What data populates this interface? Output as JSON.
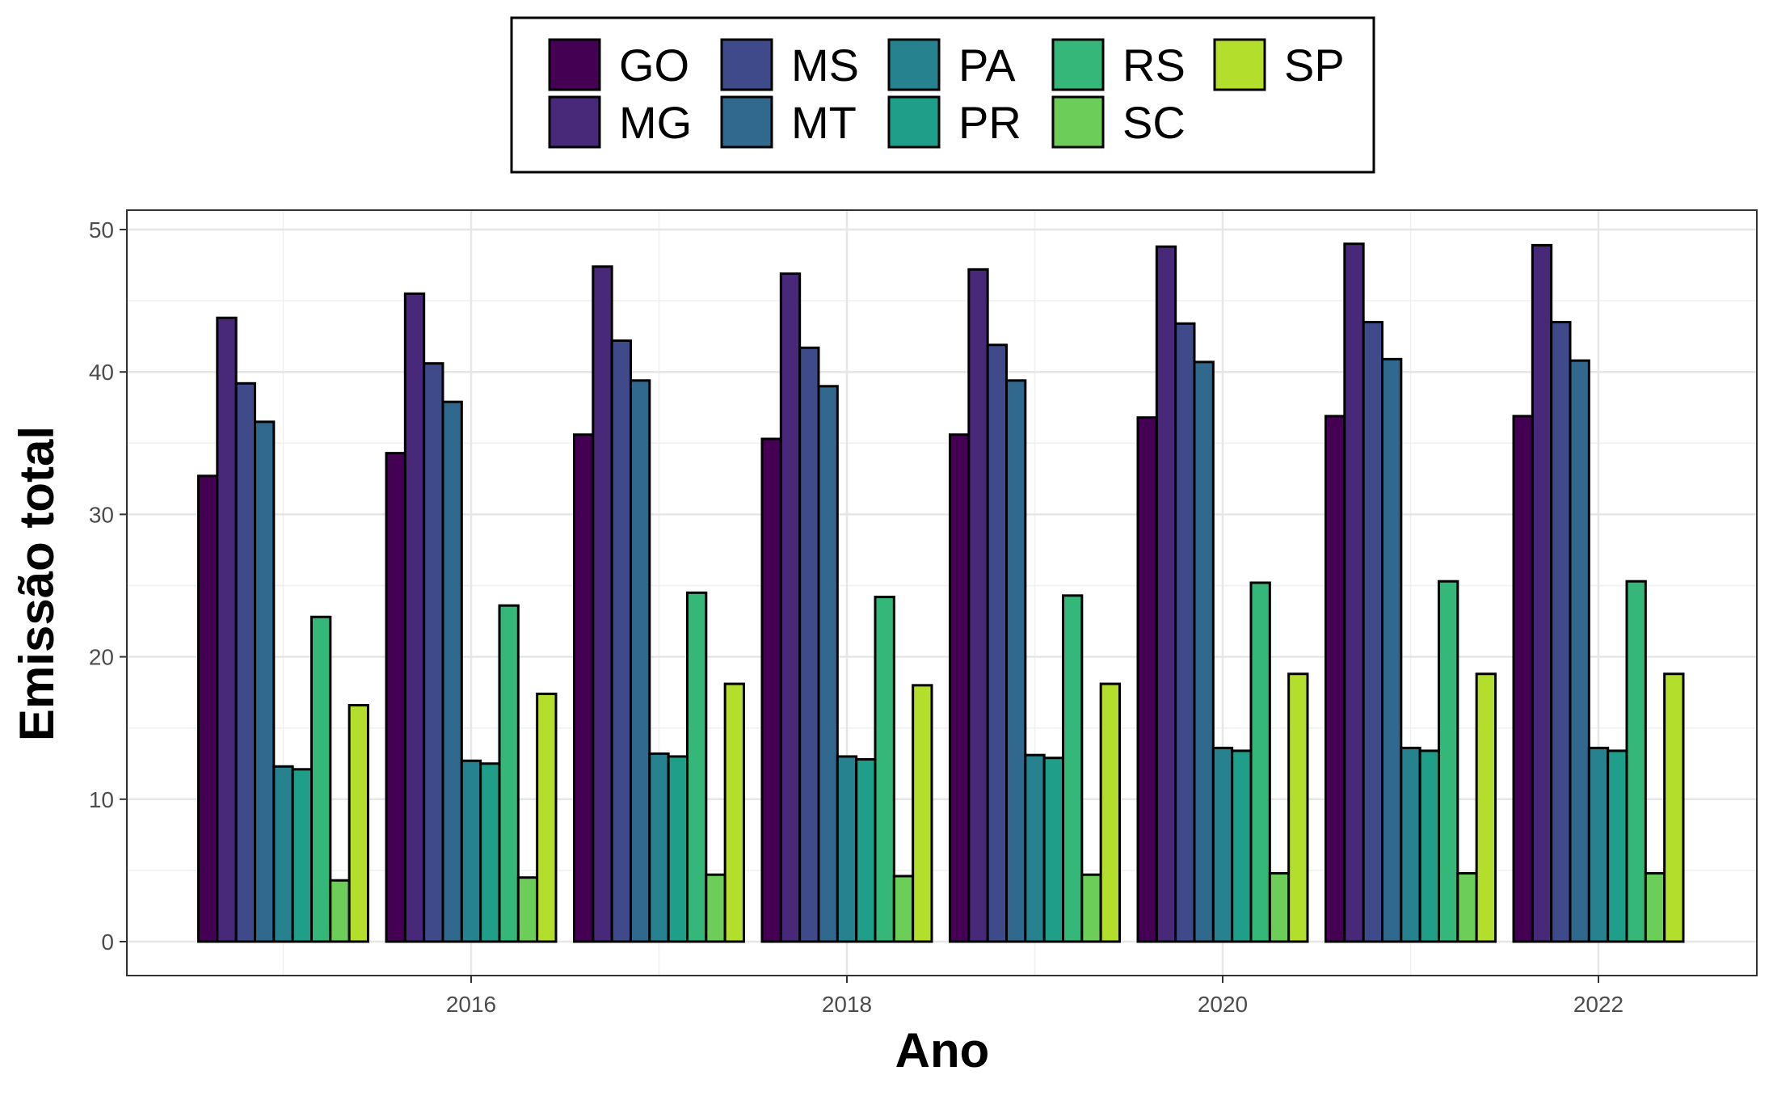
{
  "chart_data": {
    "type": "bar",
    "x": [
      2015,
      2016,
      2017,
      2018,
      2019,
      2020,
      2021,
      2022
    ],
    "xticks": [
      "2016",
      "2018",
      "2020",
      "2022"
    ],
    "xlabel": "Ano",
    "ylabel": "Emissão total",
    "ylim": [
      0,
      50
    ],
    "yticks": [
      "0",
      "10",
      "20",
      "30",
      "40",
      "50"
    ],
    "grid": true,
    "legend_position": "top",
    "series": [
      {
        "name": "GO",
        "color": "#440154",
        "values": [
          32.7,
          34.3,
          35.6,
          35.3,
          35.6,
          36.8,
          36.9,
          36.9
        ]
      },
      {
        "name": "MG",
        "color": "#482878",
        "values": [
          43.8,
          45.5,
          47.4,
          46.9,
          47.2,
          48.8,
          49.0,
          48.9
        ]
      },
      {
        "name": "MS",
        "color": "#3E4A89",
        "values": [
          39.2,
          40.6,
          42.2,
          41.7,
          41.9,
          43.4,
          43.5,
          43.5
        ]
      },
      {
        "name": "MT",
        "color": "#31688E",
        "values": [
          36.5,
          37.9,
          39.4,
          39.0,
          39.4,
          40.7,
          40.9,
          40.8
        ]
      },
      {
        "name": "PA",
        "color": "#26828E",
        "values": [
          12.3,
          12.7,
          13.2,
          13.0,
          13.1,
          13.6,
          13.6,
          13.6
        ]
      },
      {
        "name": "PR",
        "color": "#1F9E89",
        "values": [
          12.1,
          12.5,
          13.0,
          12.8,
          12.9,
          13.4,
          13.4,
          13.4
        ]
      },
      {
        "name": "RS",
        "color": "#35B779",
        "values": [
          22.8,
          23.6,
          24.5,
          24.2,
          24.3,
          25.2,
          25.3,
          25.3
        ]
      },
      {
        "name": "SC",
        "color": "#6DCD59",
        "values": [
          4.3,
          4.5,
          4.7,
          4.6,
          4.7,
          4.8,
          4.8,
          4.8
        ]
      },
      {
        "name": "SP",
        "color": "#B4DE2C",
        "values": [
          16.6,
          17.4,
          18.1,
          18.0,
          18.1,
          18.8,
          18.8,
          18.8
        ]
      }
    ]
  }
}
